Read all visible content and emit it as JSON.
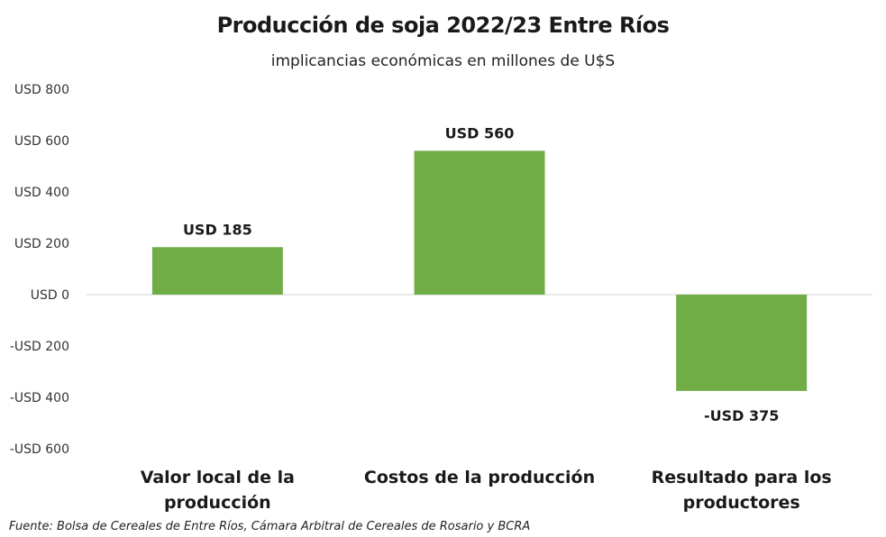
{
  "chart_data": {
    "type": "bar",
    "title": "Producción de soja 2022/23 Entre Ríos",
    "subtitle": "implicancias económicas en millones de U$S",
    "categories": [
      "Valor local de la producción",
      "Costos de la producción",
      "Resultado para los productores"
    ],
    "values": [
      185,
      560,
      -375
    ],
    "data_labels": [
      "USD 185",
      "USD 560",
      "-USD 375"
    ],
    "ylim": [
      -600,
      800
    ],
    "yticks": [
      800,
      600,
      400,
      200,
      0,
      -200,
      -400,
      -600
    ],
    "ytick_labels": [
      "USD 800",
      "USD 600",
      "USD 400",
      "USD 200",
      "USD 0",
      "-USD 200",
      "-USD 400",
      "-USD 600"
    ],
    "grid": false,
    "legend": "none",
    "bar_color": "#70ad47",
    "source": "Fuente: Bolsa de Cereales de Entre Ríos, Cámara Arbitral de Cereales de Rosario y BCRA"
  }
}
